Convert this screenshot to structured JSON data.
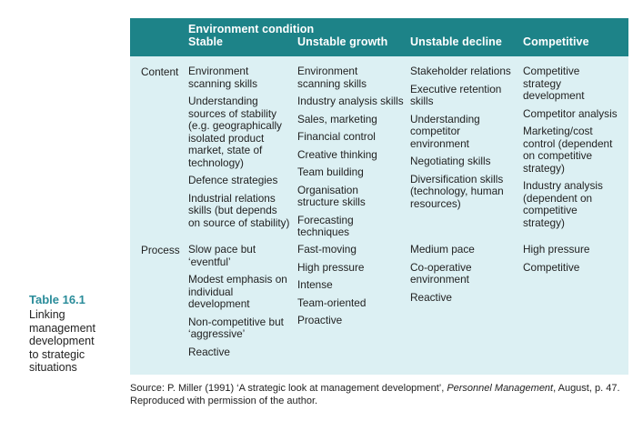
{
  "caption": {
    "number": "Table 16.1",
    "text": "Linking\nmanagement\ndevelopment\nto strategic\nsituations"
  },
  "header": {
    "group_title": "Environment condition",
    "columns": [
      "Stable",
      "Unstable growth",
      "Unstable decline",
      "Competitive"
    ]
  },
  "rows": [
    {
      "label": "Content",
      "cells": [
        [
          "Environment\nscanning skills",
          "Understanding\nsources of stability\n(e.g. geographically\nisolated product\nmarket, state of\ntechnology)",
          "Defence strategies",
          "Industrial relations\nskills (but depends\non source of stability)"
        ],
        [
          "Environment\nscanning skills",
          "Industry analysis skills",
          "Sales, marketing",
          "Financial control",
          "Creative thinking",
          "Team building",
          "Organisation\nstructure skills",
          "Forecasting\ntechniques"
        ],
        [
          "Stakeholder relations",
          "Executive retention\nskills",
          "Understanding\ncompetitor\nenvironment",
          "Negotiating skills",
          "Diversification skills\n(technology, human\nresources)"
        ],
        [
          "Competitive\nstrategy\ndevelopment",
          "Competitor analysis",
          "Marketing/cost\ncontrol (dependent\non competitive\nstrategy)",
          "Industry analysis\n(dependent on\ncompetitive\nstrategy)"
        ]
      ]
    },
    {
      "label": "Process",
      "cells": [
        [
          "Slow pace but\n‘eventful’",
          "Modest emphasis on\nindividual\ndevelopment",
          "Non-competitive but\n‘aggressive’",
          "Reactive"
        ],
        [
          "Fast-moving",
          "High pressure",
          "Intense",
          "Team-oriented",
          "Proactive"
        ],
        [
          "Medium pace",
          "Co-operative\nenvironment",
          "Reactive"
        ],
        [
          "High pressure",
          "Competitive"
        ]
      ]
    }
  ],
  "source": {
    "prefix": "Source: P. Miller (1991) ‘A strategic look at management development’, ",
    "journal": "Personnel Management",
    "suffix": ", August, p. 47.",
    "line2": "Reproduced with permission of the author."
  }
}
